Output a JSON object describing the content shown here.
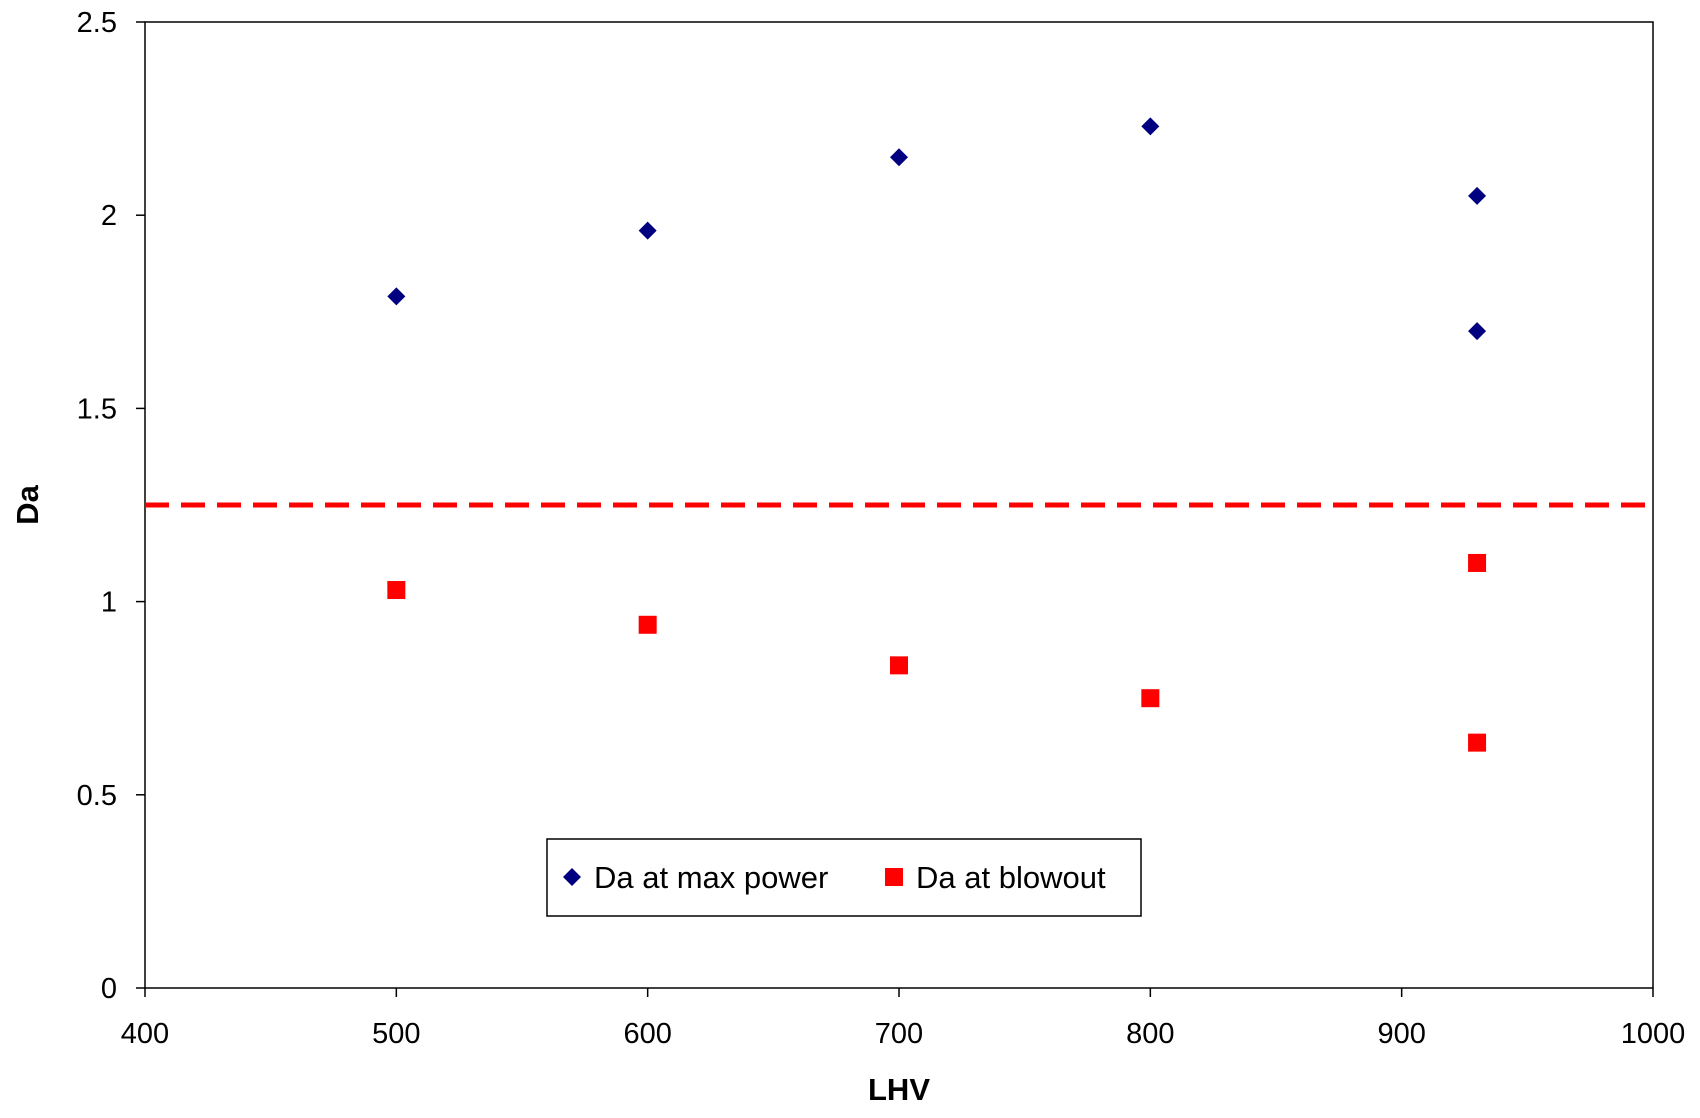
{
  "chart_data": {
    "type": "scatter",
    "title": "",
    "xlabel": "LHV",
    "ylabel": "Da",
    "xlim": [
      400,
      1000
    ],
    "ylim": [
      0,
      2.5
    ],
    "x_ticks": [
      400,
      500,
      600,
      700,
      800,
      900,
      1000
    ],
    "x_tick_labels": [
      "400",
      "500",
      "600",
      "700",
      "800",
      "900",
      "1000"
    ],
    "y_ticks": [
      0,
      0.5,
      1,
      1.5,
      2,
      2.5
    ],
    "y_tick_labels": [
      "0",
      "0.5",
      "1",
      "1.5",
      "2",
      "2.5"
    ],
    "grid": false,
    "legend_position": "bottom-center",
    "series": [
      {
        "name": "Da at max power",
        "marker": "diamond",
        "color": "#000080",
        "points": [
          {
            "x": 500,
            "y": 1.79
          },
          {
            "x": 600,
            "y": 1.96
          },
          {
            "x": 700,
            "y": 2.15
          },
          {
            "x": 800,
            "y": 2.23
          },
          {
            "x": 930,
            "y": 2.05
          },
          {
            "x": 930,
            "y": 1.7
          }
        ]
      },
      {
        "name": "Da at blowout",
        "marker": "square",
        "color": "#ff0000",
        "points": [
          {
            "x": 500,
            "y": 1.03
          },
          {
            "x": 600,
            "y": 0.94
          },
          {
            "x": 700,
            "y": 0.835
          },
          {
            "x": 800,
            "y": 0.75
          },
          {
            "x": 930,
            "y": 1.1
          },
          {
            "x": 930,
            "y": 0.635
          }
        ]
      }
    ],
    "reference_lines": [
      {
        "orientation": "horizontal",
        "y": 1.25,
        "style": "dashed",
        "color": "#ff0000"
      }
    ]
  }
}
